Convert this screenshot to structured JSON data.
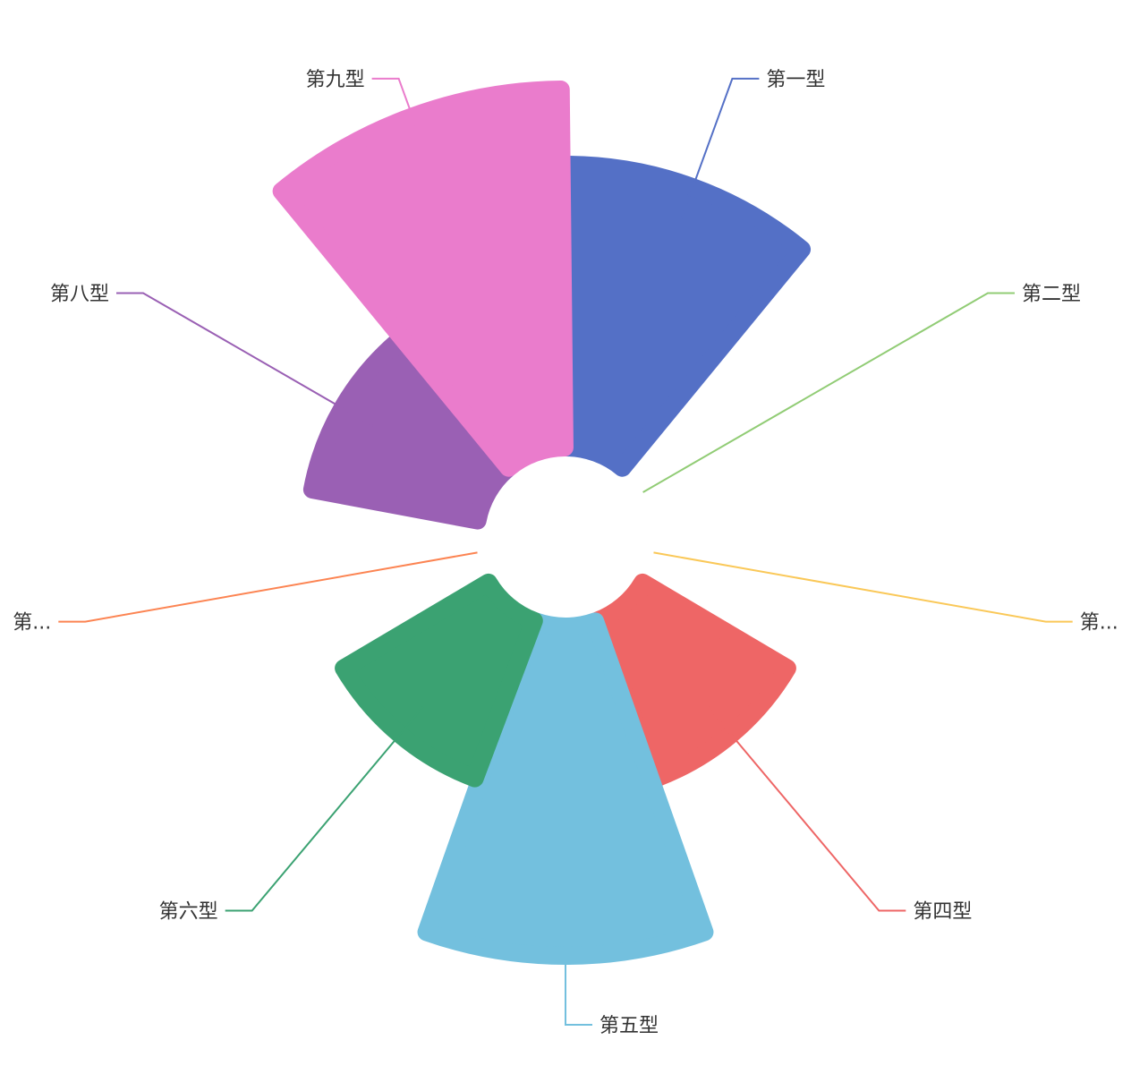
{
  "chart_data": {
    "type": "nightingale-rose",
    "title": "",
    "radius_range": [
      0,
      1
    ],
    "series": [
      {
        "name": "",
        "items": [
          {
            "label": "第一型",
            "label_shown": "第一型",
            "value": 0.79,
            "color": "#5470c6"
          },
          {
            "label": "",
            "label_shown": "第二型",
            "value": 0.0,
            "color": "#91cc75"
          },
          {
            "label": "",
            "label_shown": "第...",
            "value": 0.0,
            "color": "#fac858"
          },
          {
            "label": "第四型",
            "label_shown": "第四型",
            "value": 0.47,
            "color": "#ee6666"
          },
          {
            "label": "第五型",
            "label_shown": "第五型",
            "value": 0.92,
            "color": "#73c0de"
          },
          {
            "label": "第六型",
            "label_shown": "第六型",
            "value": 0.47,
            "color": "#3ba272"
          },
          {
            "label": "",
            "label_shown": "第...",
            "value": 0.0,
            "color": "#fc8452"
          },
          {
            "label": "第八型",
            "label_shown": "第八型",
            "value": 0.47,
            "color": "#9a60b4"
          },
          {
            "label": "第九型",
            "label_shown": "第九型",
            "value": 1.0,
            "color": "#ea7ccc"
          }
        ]
      }
    ],
    "legend": false,
    "grid": false
  }
}
